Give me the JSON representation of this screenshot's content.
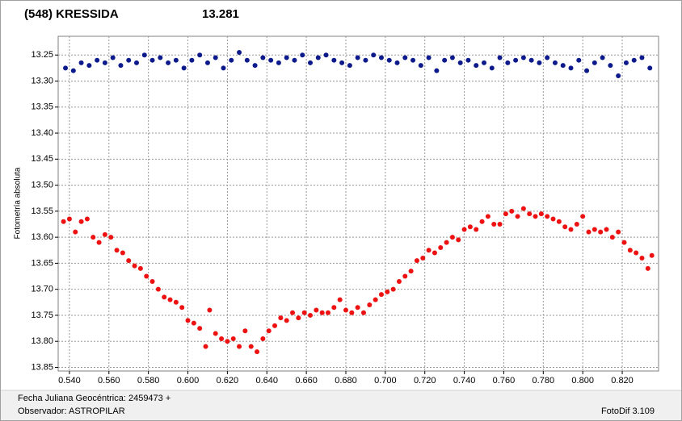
{
  "chart_data": {
    "type": "scatter",
    "title": "(548) KRESSIDA",
    "subtitle": "13.281",
    "y_label": "Fotometría absoluta",
    "x_label": "Fecha Juliana Geocéntrica: 2459473 +",
    "observer": "Observador: ASTROPILAR",
    "software": "FotoDif 3.109",
    "title_color": "#e41a1c",
    "subtitle_color": "#1a237e",
    "xlim": [
      0.5343,
      0.8384
    ],
    "ylim": [
      13.214,
      13.857
    ],
    "y_inverted": true,
    "grid": true,
    "xticks": [
      {
        "value": 0.54,
        "label": "0.540"
      },
      {
        "value": 0.56,
        "label": "0.560"
      },
      {
        "value": 0.58,
        "label": "0.580"
      },
      {
        "value": 0.6,
        "label": "0.600"
      },
      {
        "value": 0.62,
        "label": "0.620"
      },
      {
        "value": 0.64,
        "label": "0.640"
      },
      {
        "value": 0.66,
        "label": "0.660"
      },
      {
        "value": 0.68,
        "label": "0.680"
      },
      {
        "value": 0.7,
        "label": "0.700"
      },
      {
        "value": 0.72,
        "label": "0.720"
      },
      {
        "value": 0.74,
        "label": "0.740"
      },
      {
        "value": 0.76,
        "label": "0.760"
      },
      {
        "value": 0.78,
        "label": "0.780"
      },
      {
        "value": 0.8,
        "label": "0.800"
      },
      {
        "value": 0.82,
        "label": "0.820"
      }
    ],
    "yticks": [
      13.25,
      {
        "value": 13.3,
        "label": "13.30"
      },
      13.35,
      {
        "value": 13.4,
        "label": "13.40"
      },
      13.45,
      {
        "value": 13.5,
        "label": "13.50"
      },
      13.55,
      {
        "value": 13.6,
        "label": "13.60"
      },
      13.65,
      {
        "value": 13.7,
        "label": "13.70"
      },
      13.75,
      {
        "value": 13.8,
        "label": "13.80"
      },
      13.85
    ],
    "series": [
      {
        "color": "#0d1a8c",
        "x": [
          0.538,
          0.542,
          0.546,
          0.55,
          0.554,
          0.558,
          0.562,
          0.566,
          0.57,
          0.574,
          0.578,
          0.582,
          0.586,
          0.59,
          0.594,
          0.598,
          0.602,
          0.606,
          0.61,
          0.614,
          0.618,
          0.622,
          0.626,
          0.63,
          0.634,
          0.638,
          0.642,
          0.646,
          0.65,
          0.654,
          0.658,
          0.662,
          0.666,
          0.67,
          0.674,
          0.678,
          0.682,
          0.686,
          0.69,
          0.694,
          0.698,
          0.702,
          0.706,
          0.71,
          0.714,
          0.718,
          0.722,
          0.726,
          0.73,
          0.734,
          0.738,
          0.742,
          0.746,
          0.75,
          0.754,
          0.758,
          0.762,
          0.766,
          0.77,
          0.774,
          0.778,
          0.782,
          0.786,
          0.79,
          0.794,
          0.798,
          0.802,
          0.806,
          0.81,
          0.814,
          0.818,
          0.822,
          0.826,
          0.83,
          0.834
        ],
        "values": [
          13.275,
          13.28,
          13.265,
          13.27,
          13.26,
          13.265,
          13.255,
          13.27,
          13.26,
          13.265,
          13.25,
          13.26,
          13.255,
          13.265,
          13.26,
          13.275,
          13.26,
          13.25,
          13.265,
          13.255,
          13.275,
          13.26,
          13.245,
          13.26,
          13.27,
          13.255,
          13.26,
          13.265,
          13.255,
          13.26,
          13.25,
          13.265,
          13.255,
          13.25,
          13.26,
          13.265,
          13.27,
          13.255,
          13.26,
          13.25,
          13.255,
          13.26,
          13.265,
          13.255,
          13.26,
          13.27,
          13.255,
          13.28,
          13.26,
          13.255,
          13.265,
          13.26,
          13.27,
          13.265,
          13.275,
          13.255,
          13.265,
          13.26,
          13.255,
          13.26,
          13.265,
          13.255,
          13.265,
          13.27,
          13.275,
          13.26,
          13.28,
          13.265,
          13.255,
          13.27,
          13.29,
          13.265,
          13.26,
          13.255,
          13.275
        ]
      },
      {
        "color": "#ee1111",
        "x": [
          0.537,
          0.54,
          0.543,
          0.546,
          0.549,
          0.552,
          0.555,
          0.558,
          0.561,
          0.564,
          0.567,
          0.57,
          0.573,
          0.576,
          0.579,
          0.582,
          0.585,
          0.588,
          0.591,
          0.594,
          0.597,
          0.6,
          0.603,
          0.606,
          0.609,
          0.611,
          0.614,
          0.617,
          0.62,
          0.623,
          0.626,
          0.629,
          0.632,
          0.635,
          0.638,
          0.641,
          0.644,
          0.647,
          0.65,
          0.653,
          0.656,
          0.659,
          0.662,
          0.665,
          0.668,
          0.671,
          0.674,
          0.677,
          0.68,
          0.683,
          0.686,
          0.689,
          0.692,
          0.695,
          0.698,
          0.701,
          0.704,
          0.707,
          0.71,
          0.713,
          0.716,
          0.719,
          0.722,
          0.725,
          0.728,
          0.731,
          0.734,
          0.737,
          0.74,
          0.743,
          0.746,
          0.749,
          0.752,
          0.755,
          0.758,
          0.761,
          0.764,
          0.767,
          0.77,
          0.773,
          0.776,
          0.779,
          0.782,
          0.785,
          0.788,
          0.791,
          0.794,
          0.797,
          0.8,
          0.803,
          0.806,
          0.809,
          0.812,
          0.815,
          0.818,
          0.821,
          0.824,
          0.827,
          0.83,
          0.833,
          0.835
        ],
        "values": [
          13.57,
          13.565,
          13.59,
          13.57,
          13.565,
          13.6,
          13.61,
          13.595,
          13.6,
          13.625,
          13.63,
          13.645,
          13.655,
          13.66,
          13.675,
          13.685,
          13.7,
          13.715,
          13.72,
          13.725,
          13.735,
          13.76,
          13.765,
          13.775,
          13.81,
          13.74,
          13.785,
          13.795,
          13.8,
          13.795,
          13.81,
          13.78,
          13.81,
          13.82,
          13.795,
          13.78,
          13.77,
          13.755,
          13.76,
          13.745,
          13.755,
          13.745,
          13.75,
          13.74,
          13.745,
          13.745,
          13.735,
          13.72,
          13.74,
          13.745,
          13.735,
          13.745,
          13.73,
          13.72,
          13.71,
          13.705,
          13.7,
          13.685,
          13.675,
          13.665,
          13.645,
          13.64,
          13.625,
          13.63,
          13.62,
          13.61,
          13.6,
          13.605,
          13.585,
          13.58,
          13.585,
          13.57,
          13.56,
          13.575,
          13.575,
          13.555,
          13.55,
          13.56,
          13.545,
          13.555,
          13.56,
          13.555,
          13.56,
          13.565,
          13.57,
          13.58,
          13.585,
          13.575,
          13.56,
          13.59,
          13.585,
          13.59,
          13.585,
          13.6,
          13.59,
          13.61,
          13.625,
          13.63,
          13.64,
          13.66,
          13.635
        ]
      }
    ]
  }
}
